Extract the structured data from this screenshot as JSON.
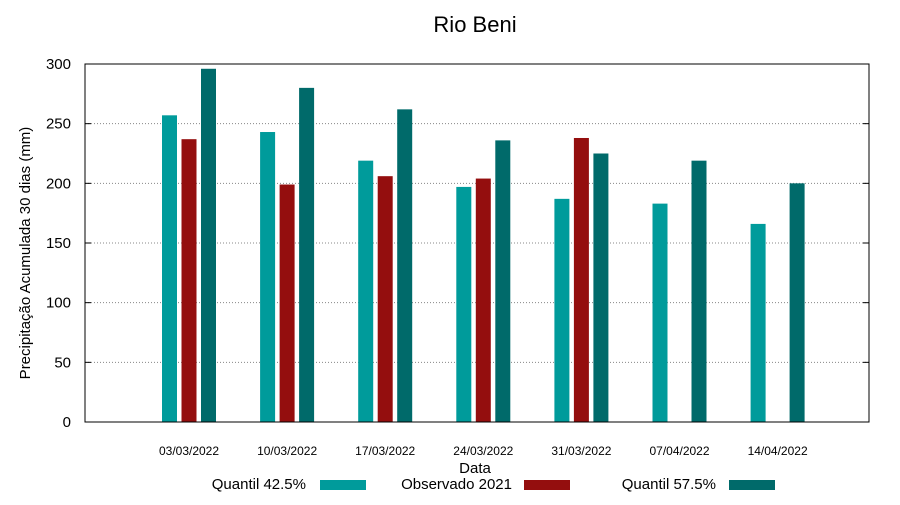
{
  "chart_data": {
    "type": "bar",
    "title": "Rio Beni",
    "xlabel": "Data",
    "ylabel": "Precipitação Acumulada 30 dias (mm)",
    "ylim": [
      0,
      300
    ],
    "yticks": [
      0,
      50,
      100,
      150,
      200,
      250,
      300
    ],
    "grid": true,
    "legend_placement": "bottom",
    "categories": [
      "03/03/2022",
      "10/03/2022",
      "17/03/2022",
      "24/03/2022",
      "31/03/2022",
      "07/04/2022",
      "14/04/2022"
    ],
    "series": [
      {
        "name": "Quantil 42.5%",
        "color": "#009b9b",
        "values": [
          257,
          243,
          219,
          197,
          187,
          183,
          166
        ]
      },
      {
        "name": "Observado 2021",
        "color": "#940e0e",
        "values": [
          237,
          199,
          206,
          204,
          238,
          null,
          null
        ]
      },
      {
        "name": "Quantil 57.5%",
        "color": "#006a6a",
        "values": [
          296,
          280,
          262,
          236,
          225,
          219,
          200
        ]
      }
    ]
  }
}
